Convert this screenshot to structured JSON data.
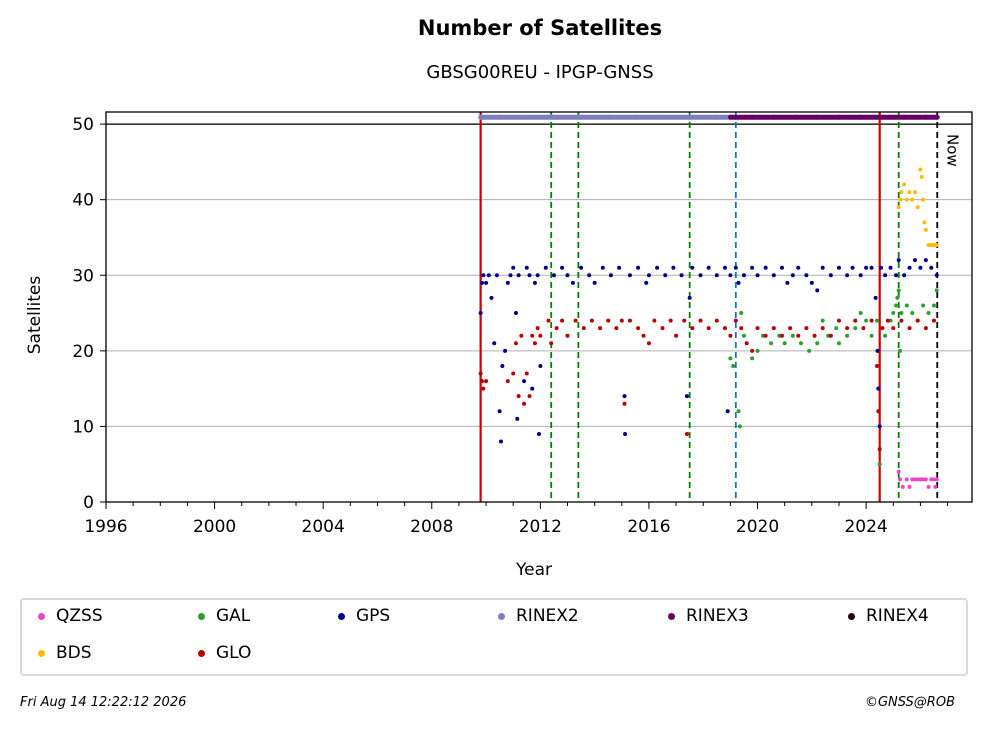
{
  "chart_data": {
    "type": "scatter",
    "title": "Number of Satellites",
    "subtitle": "GBSG00REU - IPGP-GNSS",
    "xlabel": "Year",
    "ylabel": "Satellites",
    "xlim": [
      1996,
      2027.9
    ],
    "ylim": [
      0,
      51.6
    ],
    "x_ticks": [
      1996,
      2000,
      2004,
      2008,
      2012,
      2016,
      2020,
      2024
    ],
    "y_ticks": [
      0,
      10,
      20,
      30,
      40,
      50
    ],
    "grid": "y",
    "now_label": "Now",
    "now_year": 2026.62,
    "vlines": [
      {
        "year": 2009.8,
        "color": "#008000",
        "style": "dashed"
      },
      {
        "year": 2012.4,
        "color": "#008000",
        "style": "dashed"
      },
      {
        "year": 2013.4,
        "color": "#008000",
        "style": "dashed"
      },
      {
        "year": 2017.5,
        "color": "#008000",
        "style": "dashed"
      },
      {
        "year": 2019.2,
        "color": "#1f6fbf",
        "style": "dashed"
      },
      {
        "year": 2025.2,
        "color": "#008000",
        "style": "dashed"
      },
      {
        "year": 2009.8,
        "color": "#d00000",
        "style": "solid"
      },
      {
        "year": 2024.5,
        "color": "#d00000",
        "style": "solid"
      },
      {
        "year": 2026.62,
        "color": "#000000",
        "style": "dashed"
      }
    ],
    "series": [
      {
        "name": "QZSS",
        "color": "#ee44cc",
        "points": [
          [
            2025.2,
            4
          ],
          [
            2025.25,
            3
          ],
          [
            2025.35,
            2
          ],
          [
            2025.5,
            3
          ],
          [
            2025.6,
            2
          ],
          [
            2025.7,
            3
          ],
          [
            2025.8,
            3
          ],
          [
            2025.9,
            3
          ],
          [
            2026.0,
            3
          ],
          [
            2026.1,
            3
          ],
          [
            2026.2,
            3
          ],
          [
            2026.3,
            2
          ],
          [
            2026.4,
            3
          ],
          [
            2026.5,
            3
          ],
          [
            2026.55,
            2
          ],
          [
            2026.6,
            3
          ]
        ]
      },
      {
        "name": "GAL",
        "color": "#2ca02c",
        "points": [
          [
            2019.0,
            19
          ],
          [
            2019.1,
            18
          ],
          [
            2019.3,
            12
          ],
          [
            2019.35,
            10
          ],
          [
            2019.4,
            25
          ],
          [
            2019.5,
            22
          ],
          [
            2019.8,
            19
          ],
          [
            2020.0,
            20
          ],
          [
            2020.2,
            22
          ],
          [
            2020.5,
            21
          ],
          [
            2020.8,
            22
          ],
          [
            2021.0,
            21
          ],
          [
            2021.3,
            22
          ],
          [
            2021.6,
            21
          ],
          [
            2021.9,
            20
          ],
          [
            2022.2,
            21
          ],
          [
            2022.4,
            24
          ],
          [
            2022.6,
            22
          ],
          [
            2022.9,
            23
          ],
          [
            2023.0,
            21
          ],
          [
            2023.3,
            22
          ],
          [
            2023.6,
            23
          ],
          [
            2023.8,
            25
          ],
          [
            2024.0,
            24
          ],
          [
            2024.2,
            22
          ],
          [
            2024.4,
            24
          ],
          [
            2024.5,
            5
          ],
          [
            2024.7,
            22
          ],
          [
            2024.9,
            24
          ],
          [
            2025.0,
            25
          ],
          [
            2025.1,
            26
          ],
          [
            2025.15,
            27
          ],
          [
            2025.2,
            28
          ],
          [
            2025.25,
            20
          ],
          [
            2025.3,
            25
          ],
          [
            2025.5,
            26
          ],
          [
            2025.7,
            25
          ],
          [
            2025.9,
            24
          ],
          [
            2026.1,
            26
          ],
          [
            2026.3,
            25
          ],
          [
            2026.5,
            26
          ],
          [
            2026.6,
            28
          ]
        ]
      },
      {
        "name": "GPS",
        "color": "#00008b",
        "points": [
          [
            2009.8,
            25
          ],
          [
            2009.85,
            29
          ],
          [
            2009.9,
            30
          ],
          [
            2010.0,
            29
          ],
          [
            2010.1,
            30
          ],
          [
            2010.2,
            27
          ],
          [
            2010.3,
            21
          ],
          [
            2010.4,
            30
          ],
          [
            2010.5,
            12
          ],
          [
            2010.55,
            8
          ],
          [
            2010.6,
            18
          ],
          [
            2010.7,
            20
          ],
          [
            2010.8,
            29
          ],
          [
            2010.9,
            30
          ],
          [
            2011.0,
            31
          ],
          [
            2011.1,
            25
          ],
          [
            2011.15,
            11
          ],
          [
            2011.2,
            30
          ],
          [
            2011.4,
            16
          ],
          [
            2011.5,
            31
          ],
          [
            2011.6,
            30
          ],
          [
            2011.7,
            15
          ],
          [
            2011.8,
            29
          ],
          [
            2011.9,
            30
          ],
          [
            2011.95,
            9
          ],
          [
            2012.0,
            18
          ],
          [
            2012.2,
            31
          ],
          [
            2012.5,
            30
          ],
          [
            2012.8,
            31
          ],
          [
            2013.0,
            30
          ],
          [
            2013.2,
            29
          ],
          [
            2013.5,
            31
          ],
          [
            2013.8,
            30
          ],
          [
            2014.0,
            29
          ],
          [
            2014.3,
            31
          ],
          [
            2014.6,
            30
          ],
          [
            2014.9,
            31
          ],
          [
            2015.1,
            14
          ],
          [
            2015.12,
            9
          ],
          [
            2015.3,
            30
          ],
          [
            2015.6,
            31
          ],
          [
            2015.9,
            29
          ],
          [
            2016.0,
            30
          ],
          [
            2016.3,
            31
          ],
          [
            2016.6,
            30
          ],
          [
            2016.9,
            31
          ],
          [
            2017.2,
            30
          ],
          [
            2017.4,
            14
          ],
          [
            2017.5,
            27
          ],
          [
            2017.6,
            31
          ],
          [
            2017.9,
            30
          ],
          [
            2018.2,
            31
          ],
          [
            2018.5,
            30
          ],
          [
            2018.8,
            31
          ],
          [
            2018.9,
            12
          ],
          [
            2019.0,
            30
          ],
          [
            2019.2,
            31
          ],
          [
            2019.3,
            29
          ],
          [
            2019.5,
            30
          ],
          [
            2019.8,
            31
          ],
          [
            2020.0,
            30
          ],
          [
            2020.3,
            31
          ],
          [
            2020.6,
            30
          ],
          [
            2020.9,
            31
          ],
          [
            2021.1,
            29
          ],
          [
            2021.3,
            30
          ],
          [
            2021.5,
            31
          ],
          [
            2021.8,
            30
          ],
          [
            2022.0,
            29
          ],
          [
            2022.2,
            28
          ],
          [
            2022.4,
            31
          ],
          [
            2022.7,
            30
          ],
          [
            2023.0,
            31
          ],
          [
            2023.3,
            30
          ],
          [
            2023.5,
            31
          ],
          [
            2023.8,
            30
          ],
          [
            2024.0,
            31
          ],
          [
            2024.2,
            31
          ],
          [
            2024.35,
            27
          ],
          [
            2024.42,
            20
          ],
          [
            2024.45,
            15
          ],
          [
            2024.5,
            10
          ],
          [
            2024.55,
            31
          ],
          [
            2024.7,
            30
          ],
          [
            2024.9,
            31
          ],
          [
            2025.1,
            30
          ],
          [
            2025.2,
            32
          ],
          [
            2025.4,
            30
          ],
          [
            2025.6,
            31
          ],
          [
            2025.8,
            32
          ],
          [
            2026.0,
            31
          ],
          [
            2026.2,
            32
          ],
          [
            2026.4,
            31
          ],
          [
            2026.6,
            30
          ]
        ]
      },
      {
        "name": "RINEX2",
        "color": "#7f7fbf",
        "points": [
          [
            2009.8,
            50.9
          ],
          [
            2010.5,
            50.9
          ],
          [
            2011.5,
            50.9
          ],
          [
            2012.5,
            50.9
          ],
          [
            2013.5,
            50.9
          ],
          [
            2014.5,
            50.9
          ],
          [
            2015.5,
            50.9
          ],
          [
            2016.5,
            50.9
          ],
          [
            2017.5,
            50.9
          ],
          [
            2018.5,
            50.9
          ],
          [
            2019.0,
            50.9
          ]
        ]
      },
      {
        "name": "RINEX3",
        "color": "#660066",
        "points": [
          [
            2019.0,
            50.9
          ],
          [
            2019.8,
            50.9
          ],
          [
            2020.6,
            50.9
          ],
          [
            2021.4,
            50.9
          ],
          [
            2022.2,
            50.9
          ],
          [
            2023.0,
            50.9
          ],
          [
            2023.8,
            50.9
          ],
          [
            2024.6,
            50.9
          ],
          [
            2025.4,
            50.9
          ],
          [
            2026.2,
            50.9
          ],
          [
            2026.62,
            50.9
          ]
        ]
      },
      {
        "name": "RINEX4",
        "color": "#1a0012",
        "points": []
      },
      {
        "name": "BDS",
        "color": "#ffbb00",
        "points": [
          [
            2025.2,
            39
          ],
          [
            2025.25,
            40
          ],
          [
            2025.3,
            41
          ],
          [
            2025.4,
            42
          ],
          [
            2025.5,
            40
          ],
          [
            2025.6,
            41
          ],
          [
            2025.7,
            40
          ],
          [
            2025.8,
            41
          ],
          [
            2025.9,
            39
          ],
          [
            2026.0,
            44
          ],
          [
            2026.05,
            43
          ],
          [
            2026.1,
            40
          ],
          [
            2026.15,
            37
          ],
          [
            2026.2,
            36
          ],
          [
            2026.3,
            34
          ],
          [
            2026.4,
            34
          ],
          [
            2026.5,
            34
          ],
          [
            2026.6,
            34
          ]
        ]
      },
      {
        "name": "GLO",
        "color": "#bb0000",
        "points": [
          [
            2009.8,
            17
          ],
          [
            2009.85,
            16
          ],
          [
            2009.9,
            15
          ],
          [
            2010.0,
            16
          ],
          [
            2010.8,
            16
          ],
          [
            2011.0,
            17
          ],
          [
            2011.1,
            21
          ],
          [
            2011.2,
            14
          ],
          [
            2011.3,
            22
          ],
          [
            2011.4,
            13
          ],
          [
            2011.5,
            17
          ],
          [
            2011.6,
            14
          ],
          [
            2011.7,
            22
          ],
          [
            2011.8,
            21
          ],
          [
            2011.9,
            23
          ],
          [
            2012.0,
            22
          ],
          [
            2012.3,
            24
          ],
          [
            2012.4,
            21
          ],
          [
            2012.6,
            23
          ],
          [
            2012.8,
            24
          ],
          [
            2013.0,
            22
          ],
          [
            2013.3,
            24
          ],
          [
            2013.6,
            23
          ],
          [
            2013.9,
            24
          ],
          [
            2014.2,
            23
          ],
          [
            2014.5,
            24
          ],
          [
            2014.8,
            23
          ],
          [
            2015.0,
            24
          ],
          [
            2015.1,
            13
          ],
          [
            2015.3,
            24
          ],
          [
            2015.6,
            23
          ],
          [
            2015.8,
            22
          ],
          [
            2016.0,
            21
          ],
          [
            2016.2,
            24
          ],
          [
            2016.5,
            23
          ],
          [
            2016.8,
            24
          ],
          [
            2017.0,
            22
          ],
          [
            2017.3,
            24
          ],
          [
            2017.4,
            9
          ],
          [
            2017.6,
            23
          ],
          [
            2017.9,
            24
          ],
          [
            2018.2,
            23
          ],
          [
            2018.5,
            24
          ],
          [
            2018.8,
            23
          ],
          [
            2019.0,
            22
          ],
          [
            2019.2,
            24
          ],
          [
            2019.4,
            23
          ],
          [
            2019.6,
            21
          ],
          [
            2019.8,
            20
          ],
          [
            2020.0,
            23
          ],
          [
            2020.3,
            22
          ],
          [
            2020.6,
            23
          ],
          [
            2020.9,
            22
          ],
          [
            2021.2,
            23
          ],
          [
            2021.5,
            22
          ],
          [
            2021.8,
            23
          ],
          [
            2022.1,
            22
          ],
          [
            2022.4,
            23
          ],
          [
            2022.7,
            22
          ],
          [
            2023.0,
            24
          ],
          [
            2023.3,
            23
          ],
          [
            2023.6,
            24
          ],
          [
            2023.9,
            23
          ],
          [
            2024.2,
            24
          ],
          [
            2024.4,
            18
          ],
          [
            2024.45,
            12
          ],
          [
            2024.5,
            7
          ],
          [
            2024.6,
            23
          ],
          [
            2024.8,
            24
          ],
          [
            2025.0,
            23
          ],
          [
            2025.3,
            24
          ],
          [
            2025.6,
            23
          ],
          [
            2025.9,
            24
          ],
          [
            2026.2,
            23
          ],
          [
            2026.5,
            24
          ]
        ]
      }
    ]
  },
  "footer": {
    "date": "Fri Aug 14 12:22:12 2026",
    "copyright": "©GNSS@ROB"
  }
}
